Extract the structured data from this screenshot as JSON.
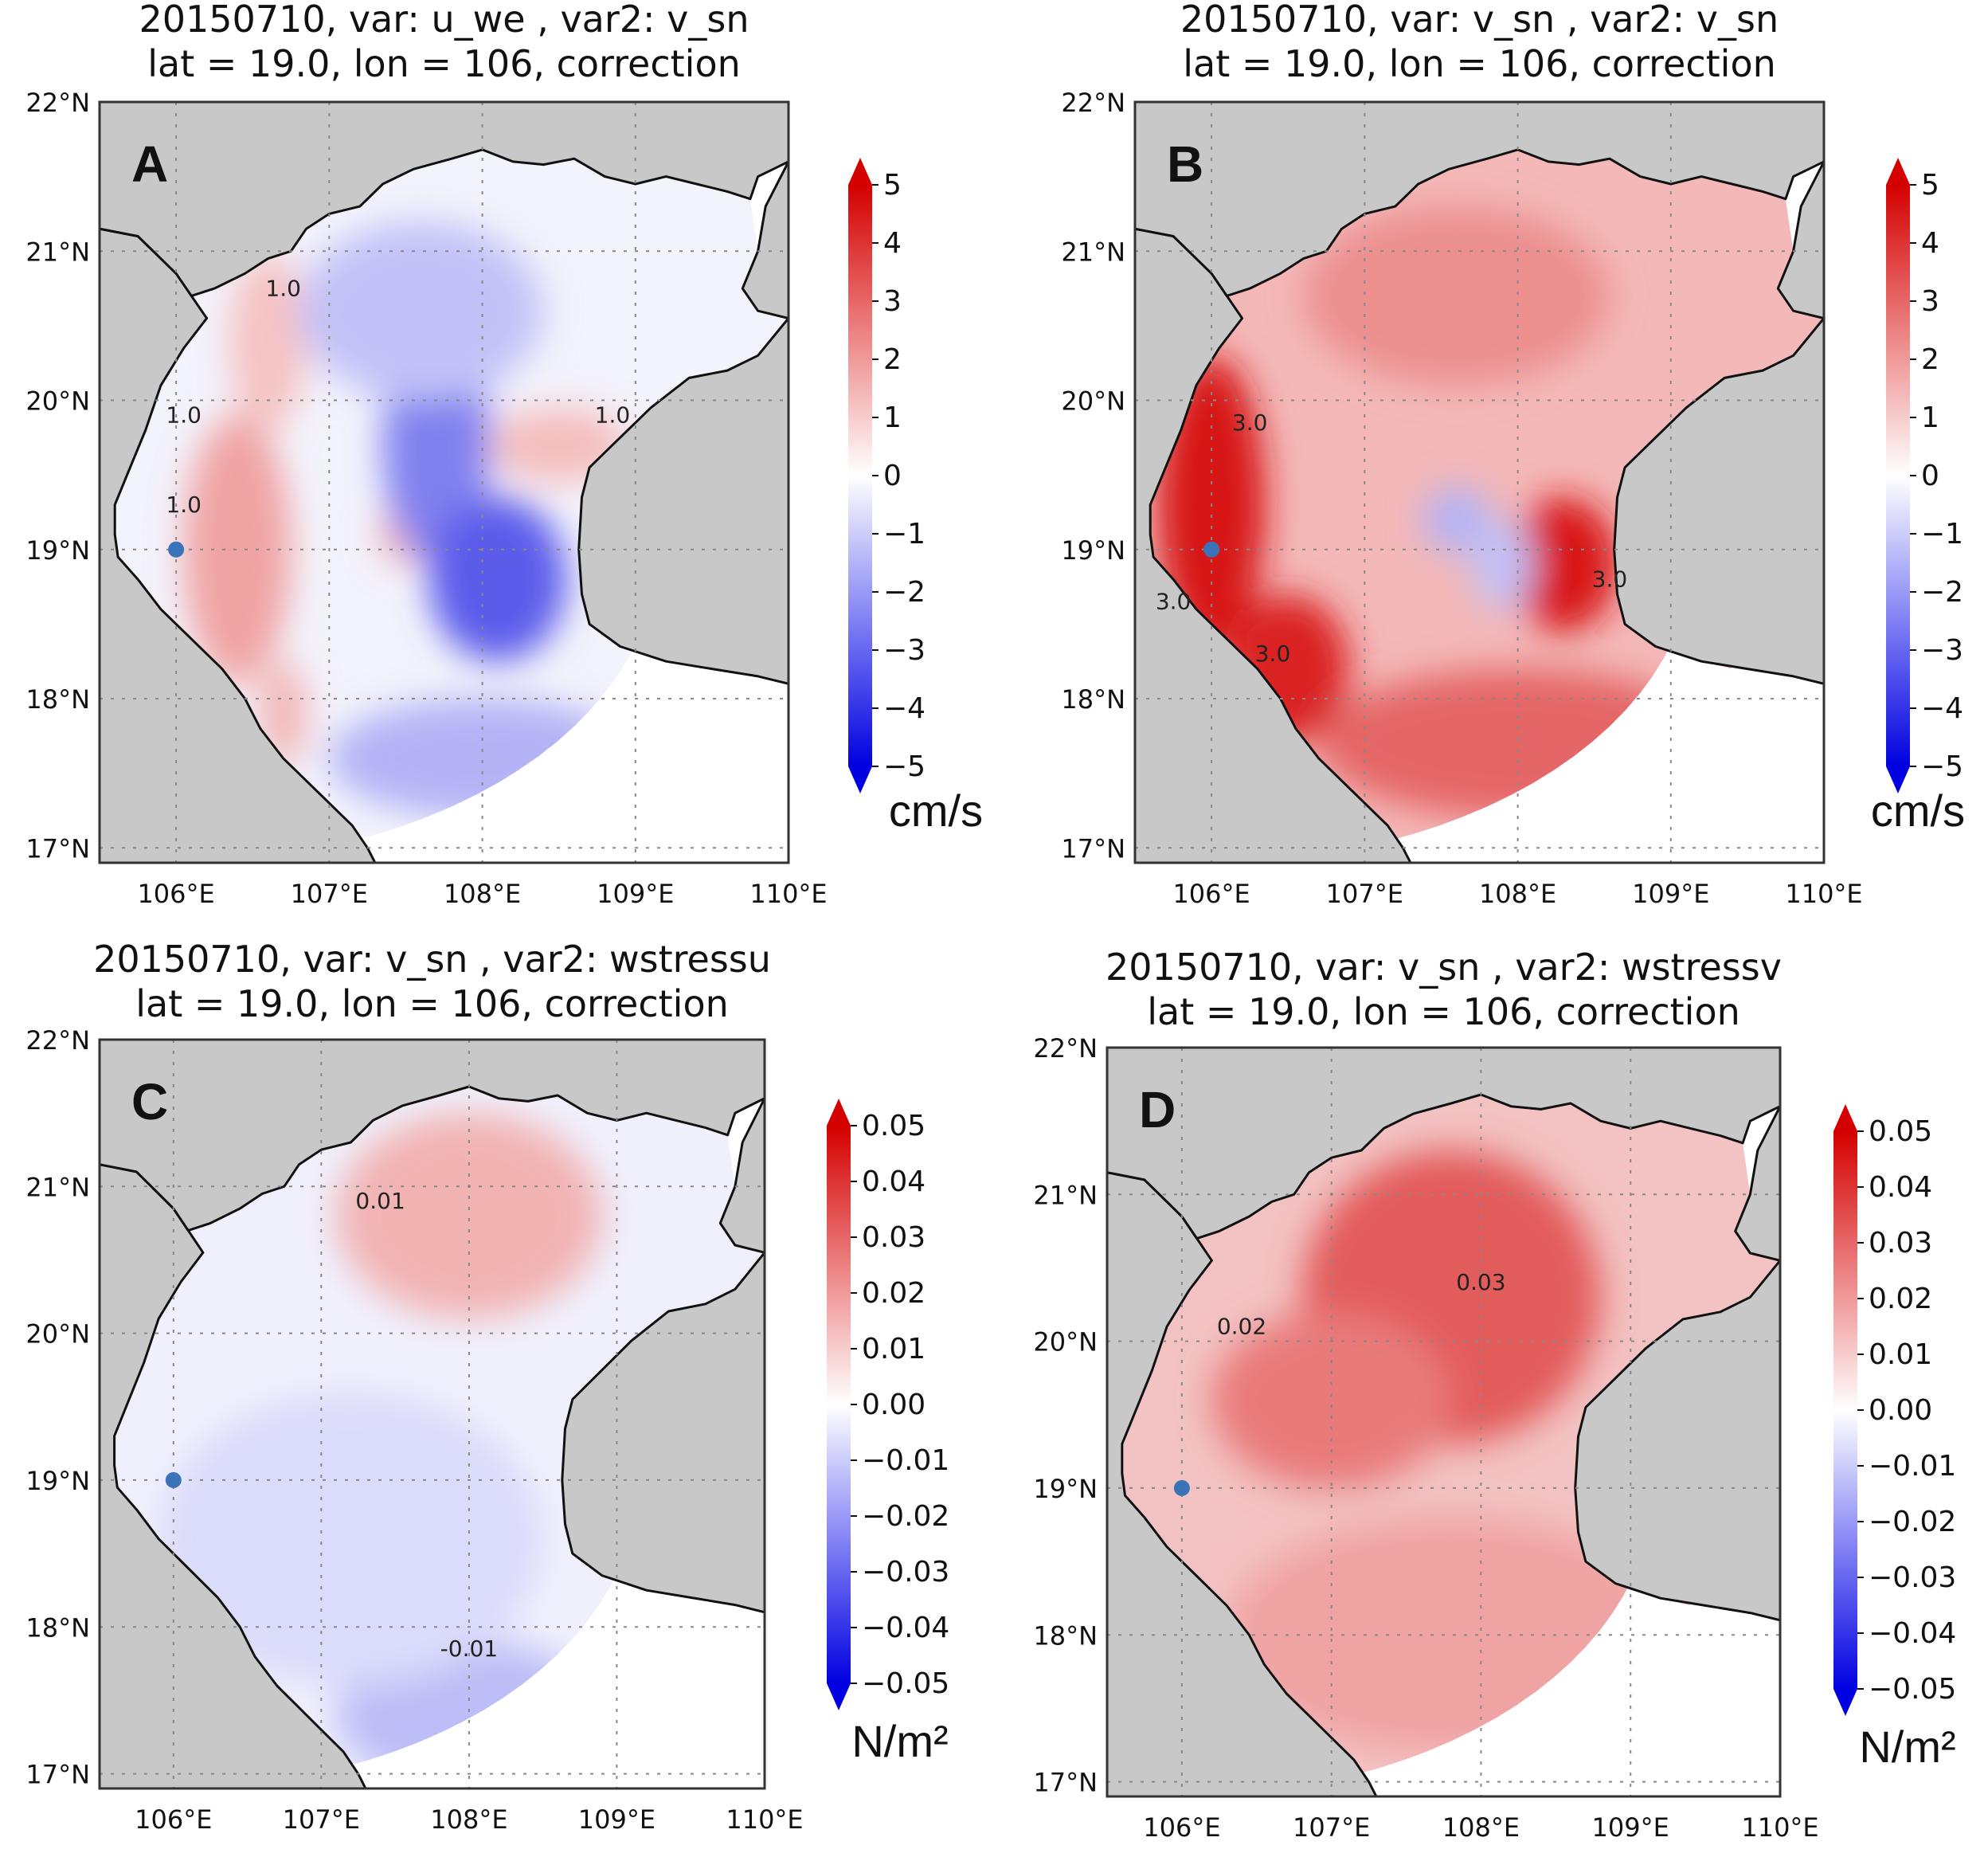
{
  "chart_data": [
    {
      "type": "heatmap",
      "panel": "A",
      "title_line1": "20150710, var: u_we , var2: v_sn",
      "title_line2": "lat = 19.0, lon = 106, correction",
      "x_tick_labels": [
        "106°E",
        "107°E",
        "108°E",
        "109°E",
        "110°E"
      ],
      "y_tick_labels": [
        "22°N",
        "21°N",
        "20°N",
        "19°N",
        "18°N",
        "17°N"
      ],
      "xlim": [
        105.5,
        110.0
      ],
      "ylim": [
        16.9,
        22.0
      ],
      "colorbar_ticks": [
        "5",
        "4",
        "3",
        "2",
        "1",
        "0",
        "−1",
        "−2",
        "−3",
        "−4",
        "−5"
      ],
      "colorbar_range": [
        -5,
        5
      ],
      "unit": "cm/s",
      "point": {
        "lon": 106.0,
        "lat": 19.0
      },
      "contour_labels": [
        {
          "text": "1.0",
          "lon": 106.7,
          "lat": 20.7
        },
        {
          "text": "1.0",
          "lon": 106.05,
          "lat": 19.85
        },
        {
          "text": "1.0",
          "lon": 106.05,
          "lat": 19.25
        },
        {
          "text": "1.0",
          "lon": 108.85,
          "lat": 19.85
        }
      ],
      "blobs": [
        {
          "lon": 106.4,
          "lat": 19.0,
          "value": 1.8,
          "rx": 0.35,
          "ry": 0.9
        },
        {
          "lon": 106.6,
          "lat": 20.4,
          "value": 1.2,
          "rx": 0.25,
          "ry": 0.6
        },
        {
          "lon": 106.7,
          "lat": 17.9,
          "value": 1.5,
          "rx": 0.15,
          "ry": 0.35
        },
        {
          "lon": 107.5,
          "lat": 19.1,
          "value": 1.5,
          "rx": 0.18,
          "ry": 0.2
        },
        {
          "lon": 108.5,
          "lat": 19.7,
          "value": 1.3,
          "rx": 0.45,
          "ry": 0.25
        },
        {
          "lon": 107.7,
          "lat": 19.7,
          "value": -2.5,
          "rx": 0.35,
          "ry": 0.8
        },
        {
          "lon": 108.1,
          "lat": 18.8,
          "value": -3.2,
          "rx": 0.45,
          "ry": 0.55
        },
        {
          "lon": 107.6,
          "lat": 20.6,
          "value": -1.2,
          "rx": 0.8,
          "ry": 0.6
        },
        {
          "lon": 108.0,
          "lat": 17.6,
          "value": -1.5,
          "rx": 1.0,
          "ry": 0.4
        }
      ]
    },
    {
      "type": "heatmap",
      "panel": "B",
      "title_line1": "20150710, var: v_sn , var2: v_sn",
      "title_line2": "lat = 19.0, lon = 106, correction",
      "x_tick_labels": [
        "106°E",
        "107°E",
        "108°E",
        "109°E",
        "110°E"
      ],
      "y_tick_labels": [
        "22°N",
        "21°N",
        "20°N",
        "19°N",
        "18°N",
        "17°N"
      ],
      "xlim": [
        105.5,
        110.0
      ],
      "ylim": [
        16.9,
        22.0
      ],
      "colorbar_ticks": [
        "5",
        "4",
        "3",
        "2",
        "1",
        "0",
        "−1",
        "−2",
        "−3",
        "−4",
        "−5"
      ],
      "colorbar_range": [
        -5,
        5
      ],
      "unit": "cm/s",
      "point": {
        "lon": 106.0,
        "lat": 19.0
      },
      "contour_labels": [
        {
          "text": "3.0",
          "lon": 106.25,
          "lat": 19.8
        },
        {
          "text": "3.0",
          "lon": 105.75,
          "lat": 18.6
        },
        {
          "text": "3.0",
          "lon": 106.4,
          "lat": 18.25
        },
        {
          "text": "3.0",
          "lon": 108.6,
          "lat": 18.75
        }
      ],
      "blobs": [
        {
          "lon": 106.0,
          "lat": 19.3,
          "value": 4.6,
          "rx": 0.35,
          "ry": 1.0
        },
        {
          "lon": 106.5,
          "lat": 18.2,
          "value": 4.3,
          "rx": 0.4,
          "ry": 0.5
        },
        {
          "lon": 108.3,
          "lat": 18.9,
          "value": 4.5,
          "rx": 0.35,
          "ry": 0.45
        },
        {
          "lon": 107.6,
          "lat": 19.2,
          "value": -1.5,
          "rx": 0.22,
          "ry": 0.22
        },
        {
          "lon": 107.9,
          "lat": 18.9,
          "value": -1.2,
          "rx": 0.2,
          "ry": 0.3
        },
        {
          "lon": 108.0,
          "lat": 17.7,
          "value": 3.0,
          "rx": 1.3,
          "ry": 0.5
        },
        {
          "lon": 107.6,
          "lat": 20.7,
          "value": 2.2,
          "rx": 1.0,
          "ry": 0.6
        }
      ]
    },
    {
      "type": "heatmap",
      "panel": "C",
      "title_line1": "20150710, var: v_sn , var2: wstressu",
      "title_line2": "lat = 19.0, lon = 106, correction",
      "x_tick_labels": [
        "106°E",
        "107°E",
        "108°E",
        "109°E",
        "110°E"
      ],
      "y_tick_labels": [
        "22°N",
        "21°N",
        "20°N",
        "19°N",
        "18°N",
        "17°N"
      ],
      "xlim": [
        105.5,
        110.0
      ],
      "ylim": [
        16.9,
        22.0
      ],
      "colorbar_ticks": [
        "0.05",
        "0.04",
        "0.03",
        "0.02",
        "0.01",
        "0.00",
        "−0.01",
        "−0.02",
        "−0.03",
        "−0.04",
        "−0.05"
      ],
      "colorbar_range": [
        -0.05,
        0.05
      ],
      "unit": "N/m²",
      "point": {
        "lon": 106.0,
        "lat": 19.0
      },
      "contour_labels": [
        {
          "text": "0.01",
          "lon": 107.4,
          "lat": 20.85
        },
        {
          "text": "-0.01",
          "lon": 108.0,
          "lat": 17.8
        }
      ],
      "blobs": [
        {
          "lon": 108.0,
          "lat": 20.8,
          "value": 0.015,
          "rx": 0.9,
          "ry": 0.7
        },
        {
          "lon": 108.0,
          "lat": 17.4,
          "value": -0.013,
          "rx": 0.9,
          "ry": 0.5
        },
        {
          "lon": 107.2,
          "lat": 18.6,
          "value": -0.007,
          "rx": 1.3,
          "ry": 1.0
        }
      ]
    },
    {
      "type": "heatmap",
      "panel": "D",
      "title_line1": "20150710, var: v_sn , var2: wstressv",
      "title_line2": "lat = 19.0, lon = 106, correction",
      "x_tick_labels": [
        "106°E",
        "107°E",
        "108°E",
        "109°E",
        "110°E"
      ],
      "y_tick_labels": [
        "22°N",
        "21°N",
        "20°N",
        "19°N",
        "18°N",
        "17°N"
      ],
      "xlim": [
        105.5,
        110.0
      ],
      "ylim": [
        16.9,
        22.0
      ],
      "colorbar_ticks": [
        "0.05",
        "0.04",
        "0.03",
        "0.02",
        "0.01",
        "0.00",
        "−0.01",
        "−0.02",
        "−0.03",
        "−0.04",
        "−0.05"
      ],
      "colorbar_range": [
        -0.05,
        0.05
      ],
      "unit": "N/m²",
      "point": {
        "lon": 106.0,
        "lat": 19.0
      },
      "contour_labels": [
        {
          "text": "0.02",
          "lon": 106.4,
          "lat": 20.05
        },
        {
          "text": "0.03",
          "lon": 108.0,
          "lat": 20.35
        }
      ],
      "blobs": [
        {
          "lon": 107.8,
          "lat": 20.3,
          "value": 0.032,
          "rx": 1.0,
          "ry": 1.0
        },
        {
          "lon": 107.0,
          "lat": 19.6,
          "value": 0.026,
          "rx": 0.8,
          "ry": 0.6
        },
        {
          "lon": 107.8,
          "lat": 18.0,
          "value": 0.018,
          "rx": 1.5,
          "ry": 0.8
        }
      ]
    }
  ]
}
